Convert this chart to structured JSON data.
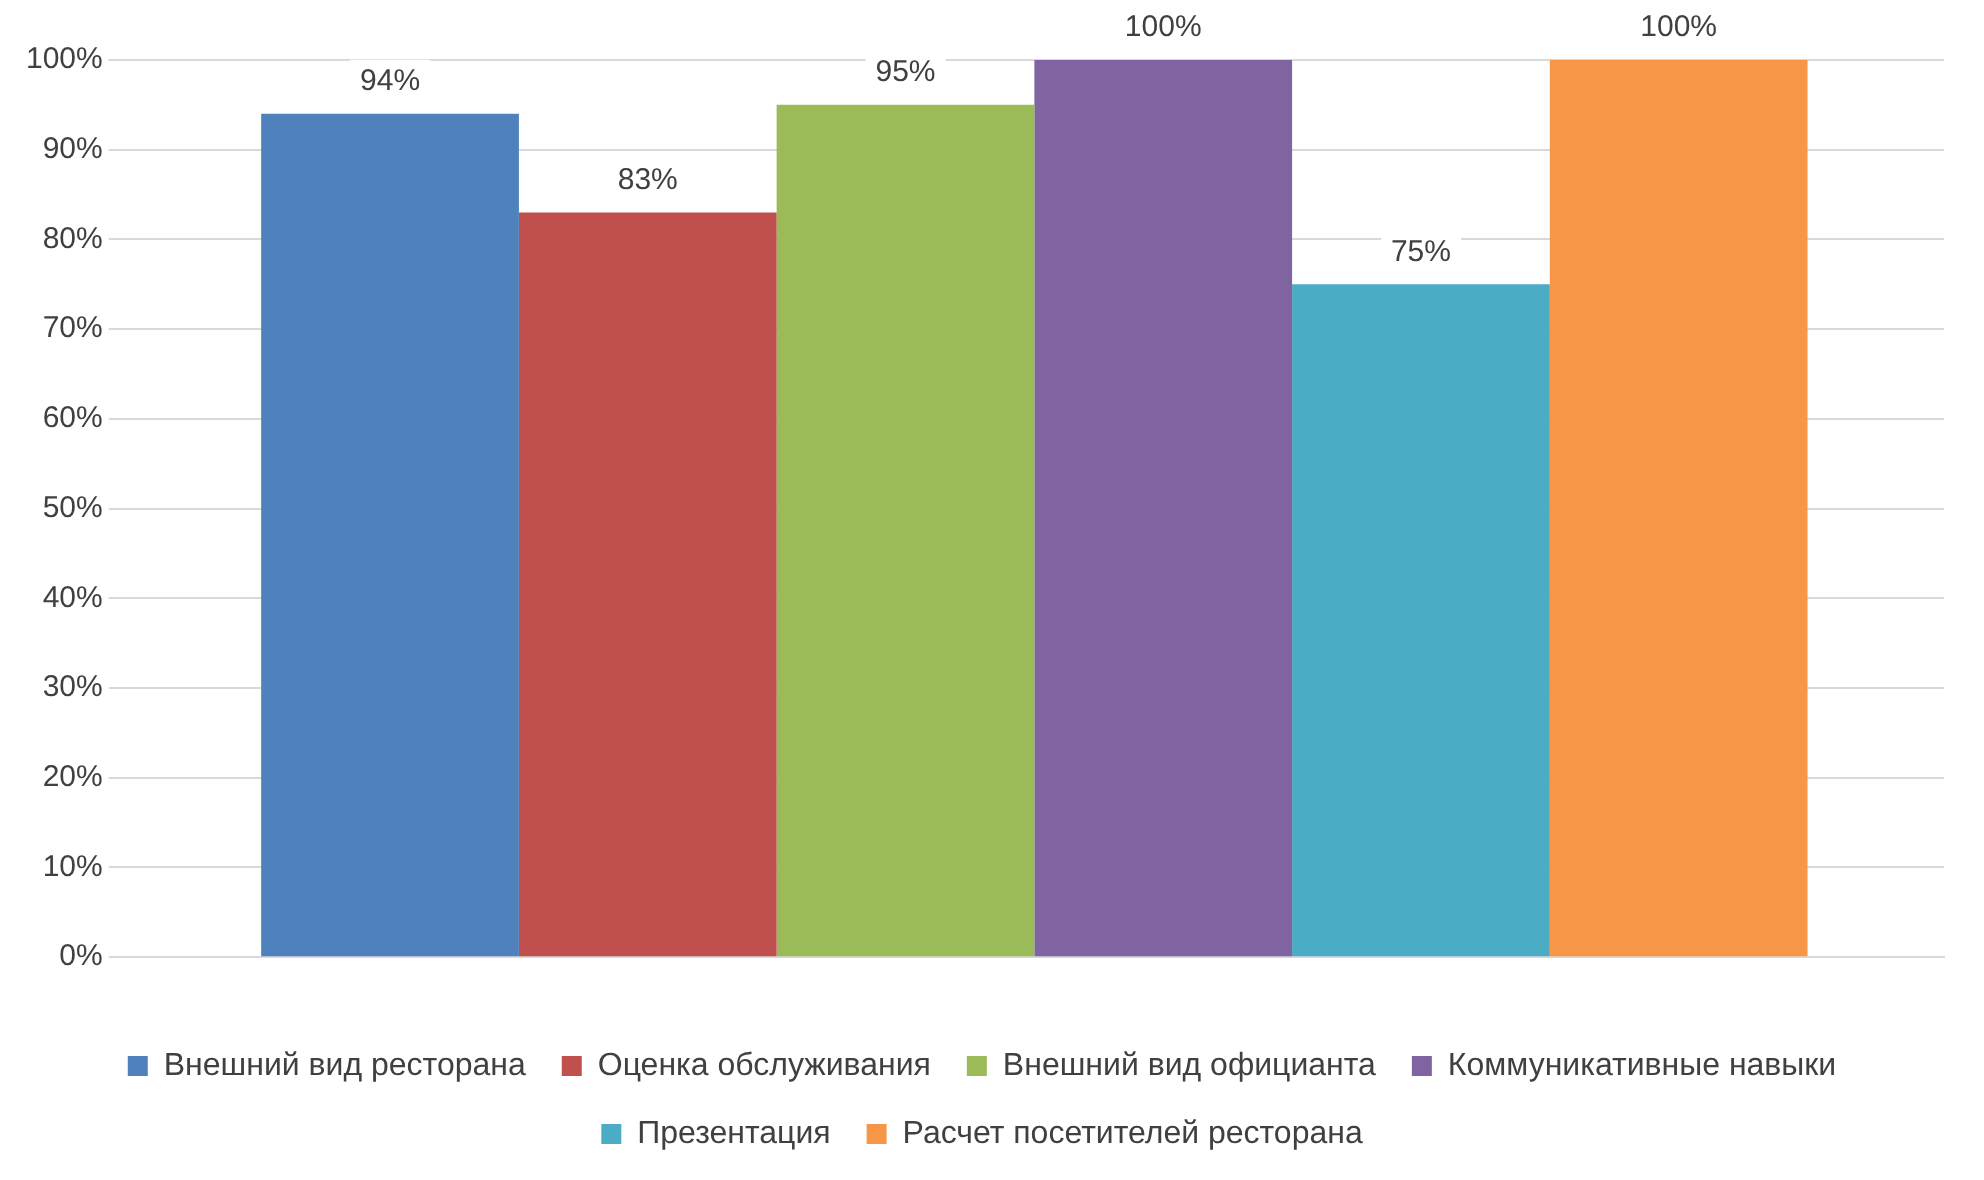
{
  "chart_data": {
    "type": "bar",
    "categories": [
      null
    ],
    "series": [
      {
        "name": "Внешний вид ресторана",
        "color": "#4f81bd",
        "values": [
          94
        ],
        "value_labels": [
          "94%"
        ]
      },
      {
        "name": "Оценка обслуживания",
        "color": "#c0504d",
        "values": [
          83
        ],
        "value_labels": [
          "83%"
        ]
      },
      {
        "name": "Внешний вид официанта",
        "color": "#9bbb59",
        "values": [
          95
        ],
        "value_labels": [
          "95%"
        ]
      },
      {
        "name": "Коммуникативные навыки",
        "color": "#8064a2",
        "values": [
          100
        ],
        "value_labels": [
          "100%"
        ]
      },
      {
        "name": "Презентация",
        "color": "#4bacc6",
        "values": [
          75
        ],
        "value_labels": [
          "75%"
        ]
      },
      {
        "name": "Расчет посетителей ресторана",
        "color": "#f79646",
        "values": [
          100
        ],
        "value_labels": [
          "100%"
        ]
      }
    ],
    "ylim": [
      0,
      100
    ],
    "yticks": [
      {
        "value": 0,
        "label": "0%"
      },
      {
        "value": 10,
        "label": "10%"
      },
      {
        "value": 20,
        "label": "20%"
      },
      {
        "value": 30,
        "label": "30%"
      },
      {
        "value": 40,
        "label": "40%"
      },
      {
        "value": 50,
        "label": "50%"
      },
      {
        "value": 60,
        "label": "60%"
      },
      {
        "value": 70,
        "label": "70%"
      },
      {
        "value": 80,
        "label": "80%"
      },
      {
        "value": 90,
        "label": "90%"
      },
      {
        "value": 100,
        "label": "100%"
      }
    ],
    "grid": "y",
    "legend": "bottom"
  }
}
